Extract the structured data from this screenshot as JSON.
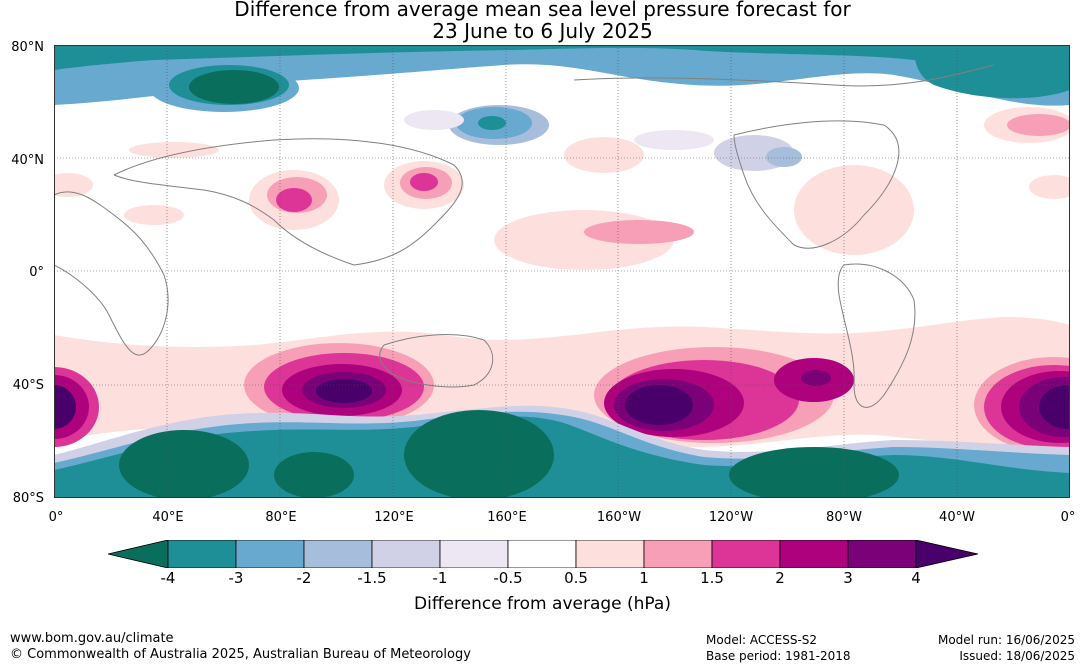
{
  "title": {
    "line1": "Difference from average mean sea level pressure forecast for",
    "line2": "23 June to 6 July 2025"
  },
  "axes": {
    "lat_labels": [
      "80°N",
      "40°N",
      "0°",
      "40°S",
      "80°S"
    ],
    "lon_labels": [
      "0°",
      "40°E",
      "80°E",
      "120°E",
      "160°E",
      "160°W",
      "120°W",
      "80°W",
      "40°W",
      "0°"
    ]
  },
  "colorbar": {
    "ticks": [
      "-4",
      "-3",
      "-2",
      "-1.5",
      "-1",
      "-0.5",
      "0.5",
      "1",
      "1.5",
      "2",
      "3",
      "4"
    ],
    "colors": [
      "#0a6e5c",
      "#1e8f96",
      "#67a9cf",
      "#a6bddb",
      "#d0d1e6",
      "#ece7f2",
      "#ffffff",
      "#fde0dd",
      "#f79fb6",
      "#dd3497",
      "#ae017e",
      "#7a0177",
      "#49006a"
    ],
    "label": "Difference from average (hPa)"
  },
  "footer": {
    "website": "www.bom.gov.au/climate",
    "copyright": "© Commonwealth of Australia 2025, Australian Bureau of Meteorology",
    "model": "Model: ACCESS-S2",
    "base_period": "Base period: 1981-2018",
    "model_run": "Model run: 16/06/2025",
    "issued": "Issued: 18/06/2025"
  }
}
